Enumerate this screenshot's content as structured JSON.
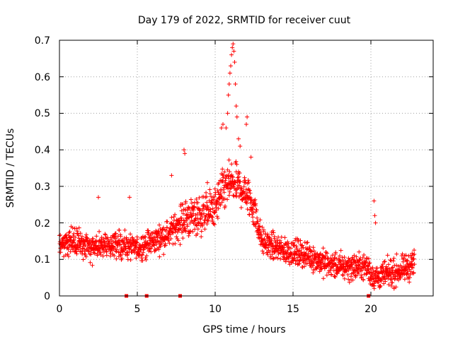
{
  "chart_data": {
    "type": "scatter",
    "title": "Day 179 of 2022, SRMTID for receiver cuut",
    "xlabel": "GPS time / hours",
    "ylabel": "SRMTID / TECUs",
    "xlim": [
      0,
      24
    ],
    "ylim": [
      0,
      0.7
    ],
    "x_ticks": [
      0,
      5,
      10,
      15,
      20
    ],
    "y_ticks": [
      0,
      0.1,
      0.2,
      0.3,
      0.4,
      0.5,
      0.6,
      0.7
    ],
    "grid": true,
    "marker": "+",
    "color": "#ff0000",
    "trend": {
      "hours": [
        0,
        1,
        2,
        3,
        4,
        5,
        6,
        7,
        8,
        9,
        10,
        10.5,
        11,
        11.5,
        12,
        12.5,
        13,
        14,
        15,
        16,
        17,
        18,
        19,
        19.8,
        20,
        20.3,
        21,
        22,
        22.8
      ],
      "values": [
        0.14,
        0.15,
        0.13,
        0.14,
        0.14,
        0.13,
        0.15,
        0.17,
        0.21,
        0.22,
        0.24,
        0.29,
        0.31,
        0.3,
        0.28,
        0.24,
        0.15,
        0.13,
        0.12,
        0.11,
        0.09,
        0.08,
        0.08,
        0.08,
        0.06,
        0.05,
        0.06,
        0.07,
        0.09
      ]
    },
    "highlight_points": [
      {
        "x": 10.7,
        "y": 0.46
      },
      {
        "x": 10.8,
        "y": 0.5
      },
      {
        "x": 10.85,
        "y": 0.55
      },
      {
        "x": 10.9,
        "y": 0.58
      },
      {
        "x": 10.95,
        "y": 0.61
      },
      {
        "x": 11.0,
        "y": 0.63
      },
      {
        "x": 11.05,
        "y": 0.66
      },
      {
        "x": 11.1,
        "y": 0.68
      },
      {
        "x": 11.15,
        "y": 0.69
      },
      {
        "x": 11.2,
        "y": 0.67
      },
      {
        "x": 11.25,
        "y": 0.64
      },
      {
        "x": 11.3,
        "y": 0.58
      },
      {
        "x": 11.35,
        "y": 0.52
      },
      {
        "x": 11.4,
        "y": 0.49
      },
      {
        "x": 11.5,
        "y": 0.43
      },
      {
        "x": 11.6,
        "y": 0.41
      },
      {
        "x": 12.0,
        "y": 0.47
      },
      {
        "x": 12.05,
        "y": 0.49
      },
      {
        "x": 8.0,
        "y": 0.4
      },
      {
        "x": 8.05,
        "y": 0.39
      },
      {
        "x": 10.4,
        "y": 0.46
      },
      {
        "x": 10.5,
        "y": 0.47
      },
      {
        "x": 20.2,
        "y": 0.26
      },
      {
        "x": 20.25,
        "y": 0.22
      },
      {
        "x": 20.3,
        "y": 0.2
      },
      {
        "x": 4.5,
        "y": 0.27
      },
      {
        "x": 2.5,
        "y": 0.27
      },
      {
        "x": 7.2,
        "y": 0.33
      },
      {
        "x": 9.5,
        "y": 0.31
      },
      {
        "x": 12.3,
        "y": 0.38
      }
    ],
    "zero_markers": [
      4.3,
      5.6,
      7.75,
      19.85
    ]
  }
}
